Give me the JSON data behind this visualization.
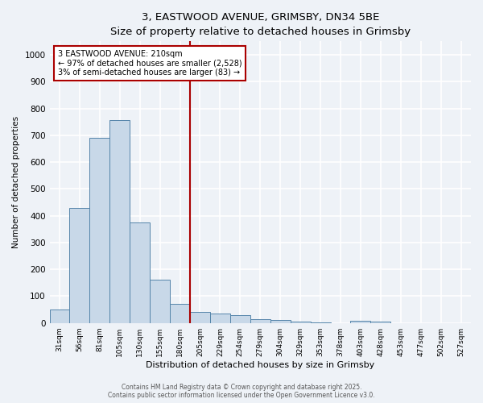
{
  "title_line1": "3, EASTWOOD AVENUE, GRIMSBY, DN34 5BE",
  "title_line2": "Size of property relative to detached houses in Grimsby",
  "xlabel": "Distribution of detached houses by size in Grimsby",
  "ylabel": "Number of detached properties",
  "categories": [
    "31sqm",
    "56sqm",
    "81sqm",
    "105sqm",
    "130sqm",
    "155sqm",
    "180sqm",
    "205sqm",
    "229sqm",
    "254sqm",
    "279sqm",
    "304sqm",
    "329sqm",
    "353sqm",
    "378sqm",
    "403sqm",
    "428sqm",
    "453sqm",
    "477sqm",
    "502sqm",
    "527sqm"
  ],
  "values": [
    50,
    430,
    690,
    755,
    375,
    160,
    70,
    40,
    35,
    28,
    15,
    10,
    5,
    3,
    0,
    8,
    5,
    0,
    0,
    0,
    0
  ],
  "bar_color": "#c8d8e8",
  "bar_edge_color": "#5585aa",
  "vline_color": "#aa0000",
  "annotation_text": "3 EASTWOOD AVENUE: 210sqm\n← 97% of detached houses are smaller (2,528)\n3% of semi-detached houses are larger (83) →",
  "annotation_box_color": "#ffffff",
  "annotation_box_edge_color": "#aa0000",
  "ylim": [
    0,
    1050
  ],
  "yticks": [
    0,
    100,
    200,
    300,
    400,
    500,
    600,
    700,
    800,
    900,
    1000
  ],
  "background_color": "#eef2f7",
  "grid_color": "#ffffff",
  "footer_line1": "Contains HM Land Registry data © Crown copyright and database right 2025.",
  "footer_line2": "Contains public sector information licensed under the Open Government Licence v3.0.",
  "title_fontsize": 9.5,
  "subtitle_fontsize": 8.5,
  "bar_width": 1.0
}
